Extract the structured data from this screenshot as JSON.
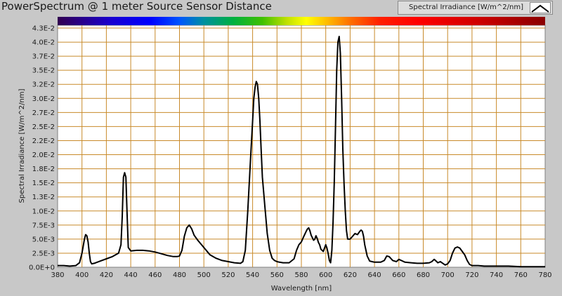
{
  "chart_data": {
    "type": "line",
    "title": "PowerSpectrum @ 1 meter Source Sensor Distance",
    "xlabel": "Wavelength [nm]",
    "ylabel": "Spectral Irradiance [W/m^2/nm]",
    "xlim": [
      380,
      780
    ],
    "ylim": [
      0,
      0.043
    ],
    "x_ticks": [
      380,
      400,
      420,
      440,
      460,
      480,
      500,
      520,
      540,
      560,
      580,
      600,
      620,
      640,
      660,
      680,
      700,
      720,
      740,
      760,
      780
    ],
    "y_ticks": [
      {
        "v": 0.0,
        "label": "0.0E+0"
      },
      {
        "v": 0.0025,
        "label": "2.5E-3"
      },
      {
        "v": 0.005,
        "label": "5.0E-3"
      },
      {
        "v": 0.0075,
        "label": "7.5E-3"
      },
      {
        "v": 0.01,
        "label": "1.0E-2"
      },
      {
        "v": 0.0125,
        "label": "1.3E-2"
      },
      {
        "v": 0.015,
        "label": "1.5E-2"
      },
      {
        "v": 0.0175,
        "label": "1.8E-2"
      },
      {
        "v": 0.02,
        "label": "2.0E-2"
      },
      {
        "v": 0.0225,
        "label": "2.2E-2"
      },
      {
        "v": 0.025,
        "label": "2.5E-2"
      },
      {
        "v": 0.0275,
        "label": "2.7E-2"
      },
      {
        "v": 0.03,
        "label": "3.0E-2"
      },
      {
        "v": 0.0325,
        "label": "3.2E-2"
      },
      {
        "v": 0.035,
        "label": "3.5E-2"
      },
      {
        "v": 0.0375,
        "label": "3.7E-2"
      },
      {
        "v": 0.04,
        "label": "4.0E-2"
      },
      {
        "v": 0.0425,
        "label": "4.3E-2"
      }
    ],
    "grid": true,
    "legend": "top-right",
    "series": [
      {
        "name": "Spectral Irradiance [W/m^2/nm]",
        "color": "#000000",
        "x": [
          380,
          385,
          390,
          395,
          398,
          400,
          402,
          403,
          404,
          405,
          406,
          407,
          408,
          410,
          415,
          420,
          425,
          430,
          432,
          433,
          434,
          435,
          436,
          437,
          438,
          440,
          445,
          450,
          455,
          460,
          465,
          470,
          475,
          478,
          480,
          482,
          484,
          486,
          488,
          490,
          492,
          495,
          500,
          505,
          510,
          515,
          520,
          525,
          530,
          532,
          534,
          536,
          538,
          540,
          541,
          542,
          543,
          544,
          545,
          546,
          547,
          548,
          550,
          552,
          554,
          556,
          558,
          560,
          562,
          565,
          570,
          574,
          576,
          578,
          580,
          582,
          584,
          585,
          586,
          587,
          588,
          590,
          591,
          592,
          593,
          594,
          595,
          596,
          598,
          600,
          601,
          602,
          603,
          604,
          605,
          606,
          607,
          608,
          609,
          610,
          611,
          612,
          613,
          614,
          615,
          616,
          617,
          618,
          620,
          622,
          624,
          626,
          628,
          629,
          630,
          631,
          632,
          634,
          636,
          638,
          640,
          645,
          648,
          650,
          652,
          655,
          658,
          660,
          662,
          665,
          670,
          675,
          680,
          685,
          687,
          689,
          690,
          692,
          694,
          696,
          698,
          700,
          702,
          704,
          706,
          708,
          710,
          712,
          714,
          716,
          718,
          720,
          725,
          730,
          740,
          750,
          760,
          770,
          780
        ],
        "y": [
          0.0003,
          0.0003,
          0.0002,
          0.0003,
          0.0008,
          0.0025,
          0.005,
          0.0058,
          0.0056,
          0.0045,
          0.0025,
          0.001,
          0.0006,
          0.0007,
          0.0011,
          0.0015,
          0.0019,
          0.0025,
          0.004,
          0.009,
          0.016,
          0.0168,
          0.016,
          0.0095,
          0.0035,
          0.0029,
          0.003,
          0.003,
          0.0029,
          0.0027,
          0.0024,
          0.0021,
          0.0019,
          0.0019,
          0.002,
          0.003,
          0.0055,
          0.007,
          0.0075,
          0.0068,
          0.0057,
          0.0048,
          0.0035,
          0.0022,
          0.0016,
          0.0012,
          0.001,
          0.0008,
          0.0007,
          0.001,
          0.003,
          0.01,
          0.018,
          0.026,
          0.03,
          0.032,
          0.033,
          0.0325,
          0.03,
          0.026,
          0.021,
          0.016,
          0.011,
          0.006,
          0.003,
          0.0016,
          0.0012,
          0.001,
          0.0009,
          0.0008,
          0.0008,
          0.0015,
          0.003,
          0.004,
          0.0045,
          0.0055,
          0.0064,
          0.0068,
          0.007,
          0.0065,
          0.0057,
          0.0048,
          0.005,
          0.0056,
          0.0051,
          0.0044,
          0.004,
          0.0032,
          0.0028,
          0.004,
          0.0034,
          0.0024,
          0.0012,
          0.0008,
          0.003,
          0.008,
          0.015,
          0.025,
          0.035,
          0.04,
          0.041,
          0.038,
          0.03,
          0.021,
          0.015,
          0.01,
          0.0065,
          0.005,
          0.005,
          0.0055,
          0.006,
          0.0058,
          0.0064,
          0.0066,
          0.0064,
          0.0055,
          0.004,
          0.002,
          0.0011,
          0.001,
          0.0009,
          0.0009,
          0.0012,
          0.002,
          0.0019,
          0.0012,
          0.001,
          0.0014,
          0.0012,
          0.0009,
          0.0008,
          0.0007,
          0.0007,
          0.0008,
          0.001,
          0.0014,
          0.0012,
          0.0008,
          0.001,
          0.0007,
          0.0004,
          0.0006,
          0.0012,
          0.0025,
          0.0034,
          0.0036,
          0.0034,
          0.0028,
          0.0022,
          0.0012,
          0.0005,
          0.0003,
          0.0003,
          0.0002,
          0.0002,
          0.0002,
          0.0001,
          0.0001,
          0.0001
        ]
      }
    ]
  }
}
